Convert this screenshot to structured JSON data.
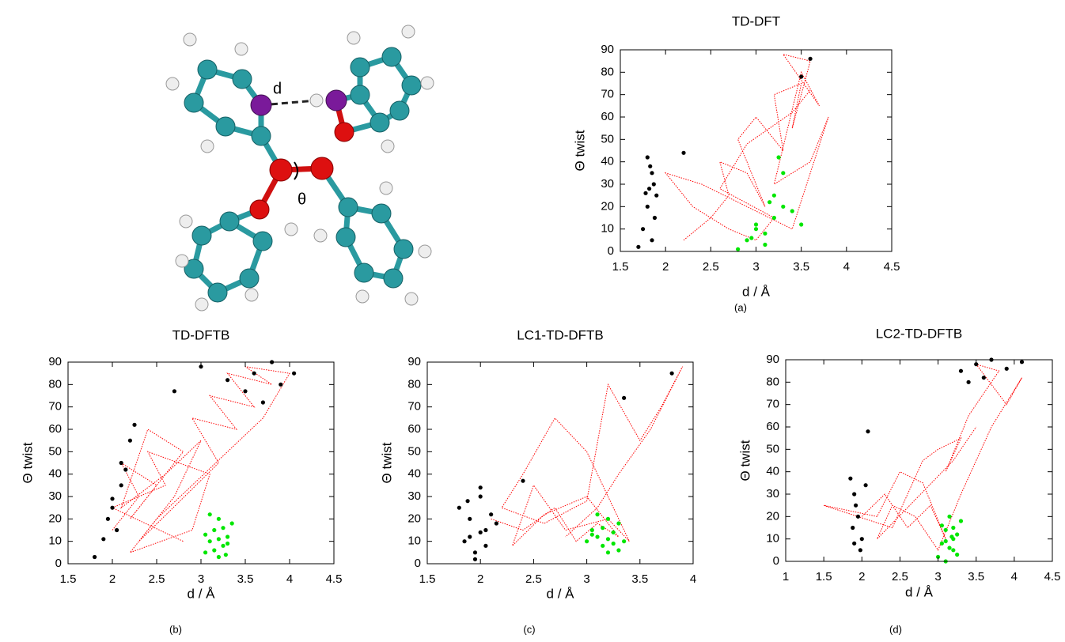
{
  "molecule": {
    "labels": [
      "d",
      "θ"
    ]
  },
  "chart_data": [
    {
      "type": "scatter",
      "title": "TD-DFT",
      "xlabel": "d / Å",
      "ylabel": "Θ twist",
      "caption": "(a)",
      "xlim": [
        1.5,
        4.5
      ],
      "xticks": [
        1.5,
        2,
        2.5,
        3,
        3.5,
        4,
        4.5
      ],
      "ylim": [
        0,
        90
      ],
      "yticks": [
        0,
        10,
        20,
        30,
        40,
        50,
        60,
        70,
        80,
        90
      ],
      "series": [
        {
          "color": "#ff0000",
          "line": true,
          "x": [
            2.2,
            2.5,
            2.7,
            2.6,
            2.9,
            3.1,
            2.8,
            3.0,
            3.3,
            3.2,
            3.5,
            3.4,
            3.6,
            3.3,
            3.7,
            3.5,
            3.2,
            3.6,
            3.8,
            3.4,
            2.4,
            2.0,
            2.3,
            2.7,
            3.0,
            3.2,
            2.6,
            2.9,
            3.4,
            3.6
          ],
          "values": [
            5,
            15,
            25,
            40,
            35,
            20,
            50,
            60,
            45,
            70,
            75,
            55,
            85,
            88,
            65,
            80,
            30,
            40,
            60,
            10,
            30,
            35,
            20,
            10,
            5,
            15,
            28,
            48,
            62,
            72
          ]
        },
        {
          "color": "#000000",
          "line": false,
          "x": [
            1.7,
            1.75,
            1.8,
            1.82,
            1.85,
            1.8,
            1.88,
            1.85,
            1.9,
            1.78,
            1.83,
            2.2,
            3.6,
            3.5,
            1.87
          ],
          "values": [
            2,
            10,
            20,
            28,
            35,
            42,
            15,
            5,
            25,
            26,
            38,
            44,
            86,
            78,
            30
          ]
        },
        {
          "color": "#00e600",
          "line": false,
          "x": [
            2.8,
            2.9,
            3.0,
            3.1,
            3.2,
            3.3,
            3.4,
            3.2,
            3.1,
            3.0,
            3.3,
            3.5,
            2.95,
            3.25,
            3.15
          ],
          "values": [
            1,
            5,
            10,
            3,
            15,
            20,
            18,
            25,
            8,
            12,
            35,
            12,
            6,
            42,
            22
          ]
        }
      ]
    },
    {
      "type": "scatter",
      "title": "TD-DFTB",
      "xlabel": "d / Å",
      "ylabel": "Θ twist",
      "caption": "(b)",
      "xlim": [
        1.5,
        4.5
      ],
      "xticks": [
        1.5,
        2,
        2.5,
        3,
        3.5,
        4,
        4.5
      ],
      "ylim": [
        0,
        90
      ],
      "yticks": [
        0,
        10,
        20,
        30,
        40,
        50,
        60,
        70,
        80,
        90
      ],
      "series": [
        {
          "color": "#ff0000",
          "line": true,
          "x": [
            2.0,
            2.3,
            2.1,
            2.5,
            2.2,
            2.8,
            2.4,
            2.1,
            2.6,
            3.0,
            2.7,
            2.3,
            3.2,
            2.9,
            3.4,
            3.1,
            3.6,
            3.3,
            3.8,
            3.5,
            4.0,
            3.7,
            2.5,
            2.2,
            2.9,
            3.1,
            2.4,
            2.6,
            2.0,
            2.8
          ],
          "values": [
            15,
            30,
            45,
            35,
            20,
            50,
            60,
            25,
            40,
            55,
            30,
            10,
            45,
            65,
            60,
            75,
            70,
            85,
            80,
            88,
            85,
            65,
            20,
            5,
            15,
            40,
            50,
            35,
            25,
            10
          ]
        },
        {
          "color": "#000000",
          "line": false,
          "x": [
            1.8,
            1.9,
            1.95,
            2.0,
            2.05,
            2.1,
            2.15,
            2.0,
            2.1,
            2.2,
            2.25,
            3.0,
            3.3,
            3.6,
            3.8,
            3.9,
            4.05,
            3.5,
            3.7,
            2.7
          ],
          "values": [
            3,
            11,
            20,
            29,
            15,
            35,
            42,
            25,
            45,
            55,
            62,
            88,
            82,
            85,
            90,
            80,
            85,
            77,
            72,
            77
          ]
        },
        {
          "color": "#00e600",
          "line": false,
          "x": [
            3.05,
            3.1,
            3.15,
            3.2,
            3.25,
            3.3,
            3.35,
            3.2,
            3.1,
            3.25,
            3.15,
            3.3,
            3.05,
            3.2,
            3.28
          ],
          "values": [
            5,
            10,
            15,
            20,
            8,
            12,
            18,
            3,
            22,
            16,
            6,
            9,
            13,
            11,
            4
          ]
        }
      ]
    },
    {
      "type": "scatter",
      "title": "LC1-TD-DFTB",
      "xlabel": "d / Å",
      "ylabel": "Θ twist",
      "caption": "(c)",
      "xlim": [
        1.5,
        4
      ],
      "xticks": [
        1.5,
        2,
        2.5,
        3,
        3.5,
        4
      ],
      "ylim": [
        0,
        90
      ],
      "yticks": [
        0,
        10,
        20,
        30,
        40,
        50,
        60,
        70,
        80,
        90
      ],
      "series": [
        {
          "color": "#ff0000",
          "line": true,
          "x": [
            2.1,
            2.4,
            2.7,
            2.9,
            3.1,
            3.3,
            3.0,
            2.6,
            2.3,
            2.5,
            2.8,
            3.2,
            3.4,
            3.0,
            2.7,
            2.4,
            2.2,
            2.6,
            3.0,
            3.2,
            3.5,
            3.7,
            3.9,
            3.6,
            3.3,
            3.1,
            2.8
          ],
          "values": [
            20,
            15,
            25,
            10,
            18,
            12,
            30,
            22,
            8,
            35,
            15,
            20,
            10,
            50,
            65,
            40,
            25,
            18,
            28,
            80,
            55,
            70,
            88,
            60,
            40,
            25,
            12
          ]
        },
        {
          "color": "#000000",
          "line": false,
          "x": [
            1.8,
            1.85,
            1.9,
            1.95,
            2.0,
            2.05,
            2.1,
            1.95,
            2.0,
            1.9,
            2.05,
            2.15,
            1.88,
            2.0,
            3.35,
            3.8,
            2.4
          ],
          "values": [
            25,
            10,
            20,
            5,
            30,
            15,
            22,
            2,
            34,
            12,
            8,
            18,
            28,
            14,
            74,
            85,
            37
          ]
        },
        {
          "color": "#00e600",
          "line": false,
          "x": [
            3.0,
            3.05,
            3.1,
            3.15,
            3.2,
            3.25,
            3.3,
            3.35,
            3.2,
            3.1,
            3.25,
            3.15,
            3.3,
            3.05,
            3.2
          ],
          "values": [
            10,
            15,
            12,
            8,
            20,
            14,
            18,
            10,
            5,
            22,
            9,
            16,
            6,
            13,
            11
          ]
        }
      ]
    },
    {
      "type": "scatter",
      "title": "LC2-TD-DFTB",
      "xlabel": "d / Å",
      "ylabel": "Θ twist",
      "caption": "(d)",
      "xlim": [
        1,
        4.5
      ],
      "xticks": [
        1,
        1.5,
        2,
        2.5,
        3,
        3.5,
        4,
        4.5
      ],
      "ylim": [
        0,
        90
      ],
      "yticks": [
        0,
        10,
        20,
        30,
        40,
        50,
        60,
        70,
        80,
        90
      ],
      "series": [
        {
          "color": "#ff0000",
          "line": true,
          "x": [
            2.0,
            2.3,
            2.6,
            2.9,
            3.1,
            2.8,
            2.5,
            2.2,
            1.5,
            2.4,
            2.8,
            3.0,
            3.3,
            3.1,
            3.4,
            3.6,
            3.8,
            3.5,
            3.9,
            4.1,
            3.7,
            3.3,
            3.0,
            2.7,
            2.4,
            2.2,
            3.2,
            3.5
          ],
          "values": [
            20,
            30,
            15,
            25,
            10,
            35,
            40,
            20,
            25,
            15,
            45,
            50,
            55,
            40,
            65,
            75,
            85,
            88,
            70,
            82,
            60,
            30,
            5,
            20,
            25,
            10,
            45,
            60
          ]
        },
        {
          "color": "#000000",
          "line": false,
          "x": [
            1.85,
            1.9,
            1.95,
            2.0,
            1.88,
            1.92,
            1.98,
            2.05,
            1.9,
            2.08,
            3.3,
            3.5,
            3.7,
            3.9,
            4.1,
            3.6,
            3.4
          ],
          "values": [
            37,
            30,
            20,
            10,
            15,
            25,
            5,
            34,
            8,
            58,
            85,
            88,
            90,
            86,
            89,
            82,
            80
          ]
        },
        {
          "color": "#00e600",
          "line": false,
          "x": [
            3.0,
            3.05,
            3.1,
            3.15,
            3.2,
            3.25,
            3.3,
            3.1,
            3.2,
            3.05,
            3.15,
            3.25,
            3.2,
            3.1,
            3.18
          ],
          "values": [
            2,
            8,
            14,
            20,
            5,
            12,
            18,
            0,
            10,
            16,
            6,
            3,
            15,
            9,
            11
          ]
        }
      ]
    }
  ]
}
